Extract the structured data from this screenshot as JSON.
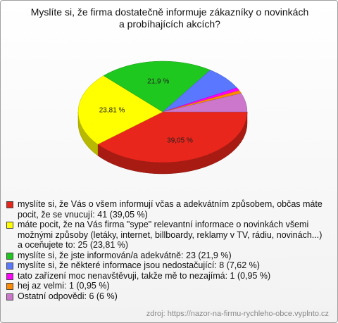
{
  "chart_data": {
    "type": "pie",
    "title": "Myslíte si, že firma dostatečně informuje zákazníky o novinkách a probíhajících akcích?",
    "categories": [
      "myslíte si, že Vás o všem informují včas a adekvátním způsobem, občas máte pocit, že se vnucují: 41 (39,05 %)",
      "máte pocit, že na Vás firma \"sype\" relevantní informace o novinkách všemi možnými způsoby (letáky, internet, billboardy, reklamy v TV, rádiu, novinách...) a oceňujete to: 25 (23,81 %)",
      "myslíte si, že jste informován/a adekvátně: 23 (21,9 %)",
      "myslíte si, že některé informace jsou nedostačující: 8 (7,62 %)",
      "tato zařízení moc nenavštěvuji, takže mě to nezajímá: 1 (0,95 %)",
      "hej az velmi: 1 (0,95 %)",
      "Ostatní odpovědi: 6 (6 %)"
    ],
    "values": [
      39.05,
      23.81,
      21.9,
      7.62,
      0.95,
      0.95,
      6
    ],
    "value_labels": [
      "39,05 %",
      "23,81 %",
      "21,9 %",
      null,
      null,
      null,
      null
    ],
    "colors": [
      "#e8261b",
      "#ffff00",
      "#1fc81f",
      "#5a78ff",
      "#ff00ff",
      "#ff8a00",
      "#cc77cc"
    ],
    "source": "zdroj: https://nazor-na-firmu-rychleho-obce.vyplnto.cz"
  }
}
